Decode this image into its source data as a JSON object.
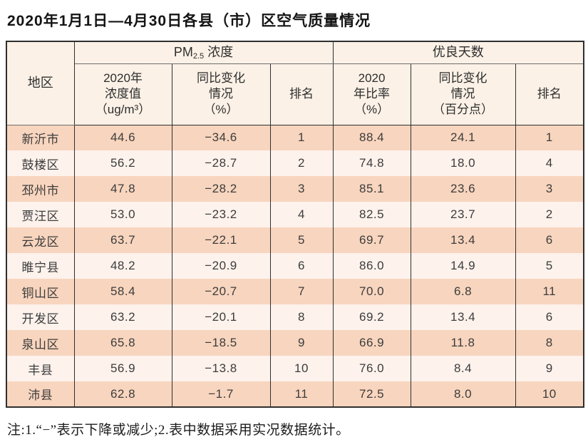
{
  "title": "2020年1月1日—4月30日各县（市）区空气质量情况",
  "table": {
    "header": {
      "region": "地区",
      "pm25_group": {
        "prefix": "PM",
        "sub": "2.5",
        "suffix": " 浓度"
      },
      "good_days_group": "优良天数",
      "pm_value_label": [
        "2020年",
        "浓度值",
        "（ug/m³）"
      ],
      "pm_change_label": [
        "同比变化",
        "情况",
        "（%）"
      ],
      "pm_rank_label": "排名",
      "good_ratio_label": [
        "2020",
        "年比率",
        "（%）"
      ],
      "good_change_label": [
        "同比变化",
        "情况",
        "（百分点）"
      ],
      "good_rank_label": "排名"
    },
    "rows": [
      {
        "region": "新沂市",
        "pm_value": "44.6",
        "pm_change": "−34.6",
        "pm_rank": "1",
        "good_ratio": "88.4",
        "good_change": "24.1",
        "good_rank": "1"
      },
      {
        "region": "鼓楼区",
        "pm_value": "56.2",
        "pm_change": "−28.7",
        "pm_rank": "2",
        "good_ratio": "74.8",
        "good_change": "18.0",
        "good_rank": "4"
      },
      {
        "region": "邳州市",
        "pm_value": "47.8",
        "pm_change": "−28.2",
        "pm_rank": "3",
        "good_ratio": "85.1",
        "good_change": "23.6",
        "good_rank": "3"
      },
      {
        "region": "贾汪区",
        "pm_value": "53.0",
        "pm_change": "−23.2",
        "pm_rank": "4",
        "good_ratio": "82.5",
        "good_change": "23.7",
        "good_rank": "2"
      },
      {
        "region": "云龙区",
        "pm_value": "63.7",
        "pm_change": "−22.1",
        "pm_rank": "5",
        "good_ratio": "69.7",
        "good_change": "13.4",
        "good_rank": "6"
      },
      {
        "region": "睢宁县",
        "pm_value": "48.2",
        "pm_change": "−20.9",
        "pm_rank": "6",
        "good_ratio": "86.0",
        "good_change": "14.9",
        "good_rank": "5"
      },
      {
        "region": "铜山区",
        "pm_value": "58.4",
        "pm_change": "−20.7",
        "pm_rank": "7",
        "good_ratio": "70.0",
        "good_change": "6.8",
        "good_rank": "11"
      },
      {
        "region": "开发区",
        "pm_value": "63.2",
        "pm_change": "−20.1",
        "pm_rank": "8",
        "good_ratio": "69.2",
        "good_change": "13.4",
        "good_rank": "6"
      },
      {
        "region": "泉山区",
        "pm_value": "65.8",
        "pm_change": "−18.5",
        "pm_rank": "9",
        "good_ratio": "66.9",
        "good_change": "11.8",
        "good_rank": "8"
      },
      {
        "region": "丰县",
        "pm_value": "56.9",
        "pm_change": "−13.8",
        "pm_rank": "10",
        "good_ratio": "76.0",
        "good_change": "8.4",
        "good_rank": "9"
      },
      {
        "region": "沛县",
        "pm_value": "62.8",
        "pm_change": "−1.7",
        "pm_rank": "11",
        "good_ratio": "72.5",
        "good_change": "8.0",
        "good_rank": "10"
      }
    ]
  },
  "footnote": "注:1.“−”表示下降或减少;2.表中数据采用实况数据统计。",
  "colors": {
    "header_bg": "#fbf1e6",
    "row_odd_bg": "#f8d5be",
    "row_even_bg": "#fdf2ec",
    "border": "#2f2f2f",
    "text": "#3c3c3c"
  }
}
